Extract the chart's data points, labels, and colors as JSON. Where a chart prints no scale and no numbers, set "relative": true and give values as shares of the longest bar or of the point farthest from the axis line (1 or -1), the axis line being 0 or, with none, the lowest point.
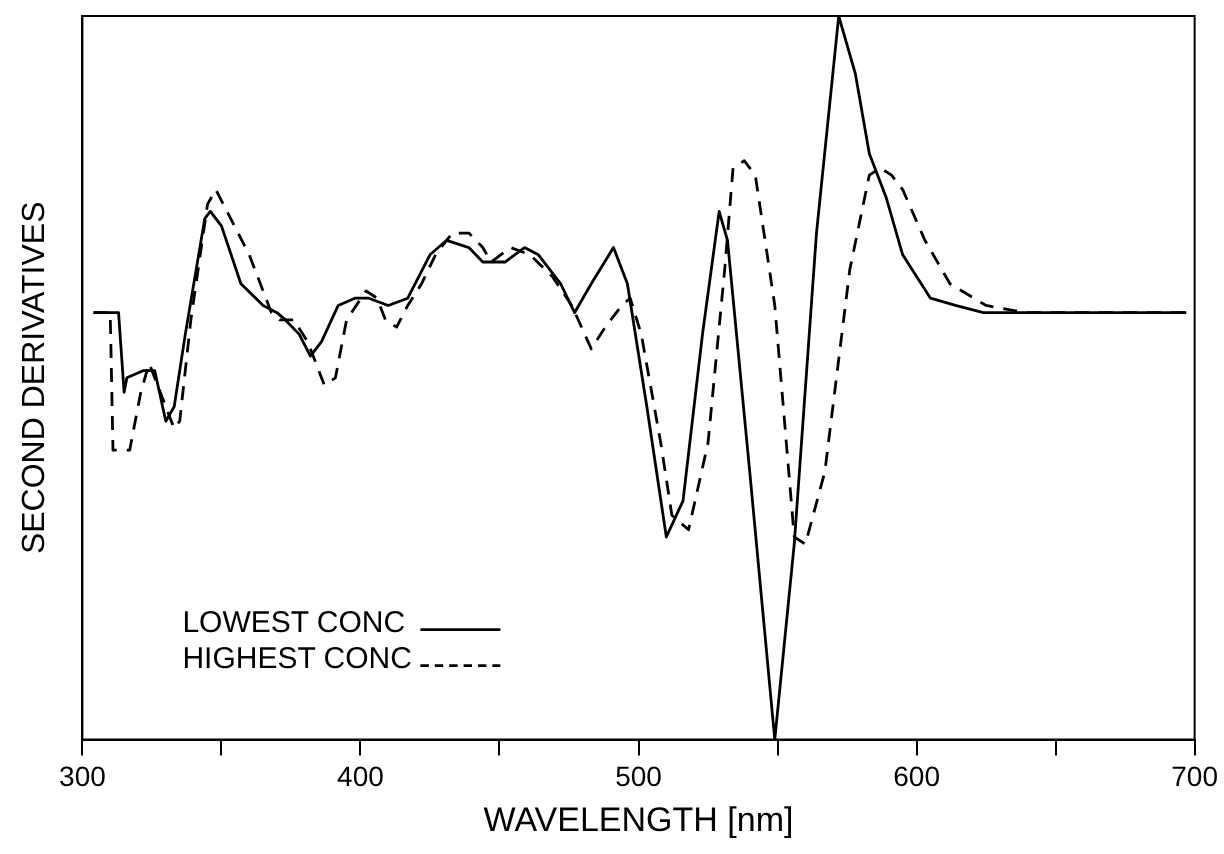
{
  "chart_data": {
    "type": "line",
    "xlabel": "WAVELENGTH [nm]",
    "ylabel": "SECOND DERIVATIVES",
    "relative": true,
    "xlim": [
      300,
      700
    ],
    "xticks": [
      300,
      {
        "value": 350,
        "label": null
      },
      400,
      {
        "value": 450,
        "label": null
      },
      500,
      {
        "value": 550,
        "label": null
      },
      600,
      {
        "value": 650,
        "label": null
      },
      700
    ],
    "grid": false,
    "legend": "bottom left",
    "marker": "none",
    "series": [
      {
        "name": "LOWEST CONC",
        "color": "#000000",
        "line_style": "solid",
        "x": [
          304,
          313,
          315,
          316,
          322,
          326,
          330,
          333,
          337,
          344,
          346,
          350,
          357,
          365,
          370,
          373,
          378,
          382,
          386,
          392,
          398,
          403,
          410,
          417,
          425,
          431,
          439,
          444,
          447,
          452,
          459,
          464,
          472,
          477,
          483,
          491,
          496,
          503,
          510,
          516,
          523,
          529,
          532,
          540,
          549,
          556,
          564,
          572,
          578,
          583,
          589,
          595,
          605,
          614,
          624,
          648,
          697
        ],
        "values": [
          0.59,
          0.59,
          0.48,
          0.5,
          0.51,
          0.51,
          0.44,
          0.46,
          0.56,
          0.72,
          0.73,
          0.71,
          0.63,
          0.6,
          0.59,
          0.58,
          0.56,
          0.53,
          0.55,
          0.6,
          0.61,
          0.61,
          0.6,
          0.61,
          0.67,
          0.69,
          0.68,
          0.66,
          0.66,
          0.66,
          0.68,
          0.67,
          0.63,
          0.59,
          0.63,
          0.68,
          0.63,
          0.46,
          0.28,
          0.33,
          0.56,
          0.73,
          0.69,
          0.37,
          0,
          0.27,
          0.7,
          1,
          0.92,
          0.81,
          0.75,
          0.67,
          0.61,
          0.6,
          0.59,
          0.59,
          0.59
        ]
      },
      {
        "name": "HIGHEST CONC",
        "color": "#000000",
        "line_style": "dashed",
        "x": [
          304,
          310,
          311,
          317,
          321,
          324,
          328,
          333,
          335,
          339,
          345,
          348,
          352,
          360,
          364,
          368,
          371,
          376,
          381,
          387,
          391,
          395,
          402,
          406,
          409,
          413,
          417,
          422,
          427,
          433,
          439,
          444,
          447,
          454,
          461,
          469,
          476,
          483,
          488,
          494,
          497,
          501,
          508,
          512,
          518,
          525,
          531,
          534,
          538,
          542,
          549,
          556,
          560,
          567,
          576,
          583,
          587,
          591,
          595,
          603,
          612,
          625,
          639,
          697
        ],
        "values": [
          0.59,
          0.59,
          0.4,
          0.4,
          0.48,
          0.52,
          0.48,
          0.43,
          0.44,
          0.58,
          0.74,
          0.76,
          0.73,
          0.67,
          0.63,
          0.59,
          0.58,
          0.58,
          0.55,
          0.49,
          0.5,
          0.58,
          0.62,
          0.61,
          0.58,
          0.57,
          0.6,
          0.63,
          0.67,
          0.7,
          0.7,
          0.68,
          0.66,
          0.68,
          0.67,
          0.64,
          0.6,
          0.54,
          0.57,
          0.6,
          0.61,
          0.56,
          0.41,
          0.31,
          0.29,
          0.41,
          0.65,
          0.79,
          0.8,
          0.78,
          0.6,
          0.28,
          0.27,
          0.37,
          0.65,
          0.78,
          0.79,
          0.78,
          0.76,
          0.69,
          0.63,
          0.6,
          0.59,
          0.59
        ]
      }
    ]
  }
}
